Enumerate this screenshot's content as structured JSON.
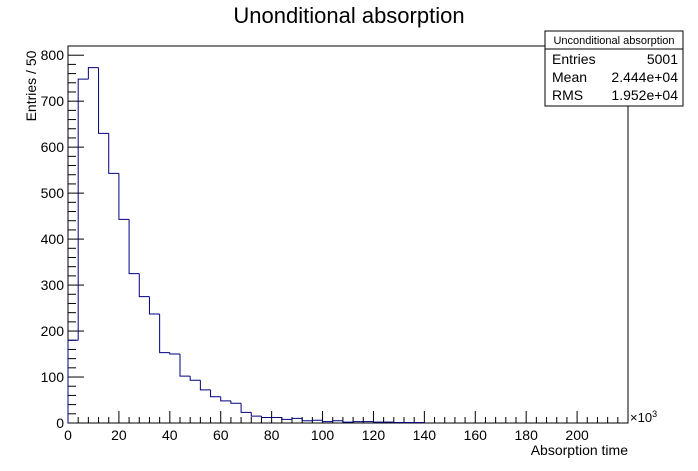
{
  "chart_data": {
    "type": "histogram",
    "title": "Unonditional absorption",
    "xlabel": "Absorption time",
    "ylabel": "Entries / 50",
    "x_multiplier_label": "×10",
    "x_multiplier_exp": "3",
    "xlim": [
      0,
      220
    ],
    "ylim": [
      0,
      820
    ],
    "x_ticks": [
      0,
      20,
      40,
      60,
      80,
      100,
      120,
      140,
      160,
      180,
      200
    ],
    "y_ticks": [
      0,
      100,
      200,
      300,
      400,
      500,
      600,
      700,
      800
    ],
    "bin_width": 4,
    "bin_edges_start": 0,
    "values": [
      180,
      748,
      773,
      630,
      543,
      443,
      325,
      275,
      237,
      153,
      150,
      102,
      93,
      72,
      57,
      48,
      43,
      23,
      15,
      12,
      12,
      8,
      10,
      5,
      6,
      3,
      5,
      2,
      3,
      3,
      2,
      2,
      1,
      1,
      1
    ],
    "line_color": "#00007f",
    "grid": false,
    "stats_box": {
      "title": "Unconditional absorption",
      "rows": [
        {
          "label": "Entries",
          "value": "5001"
        },
        {
          "label": "Mean",
          "value": "2.444e+04"
        },
        {
          "label": "RMS",
          "value": "1.952e+04"
        }
      ]
    }
  }
}
